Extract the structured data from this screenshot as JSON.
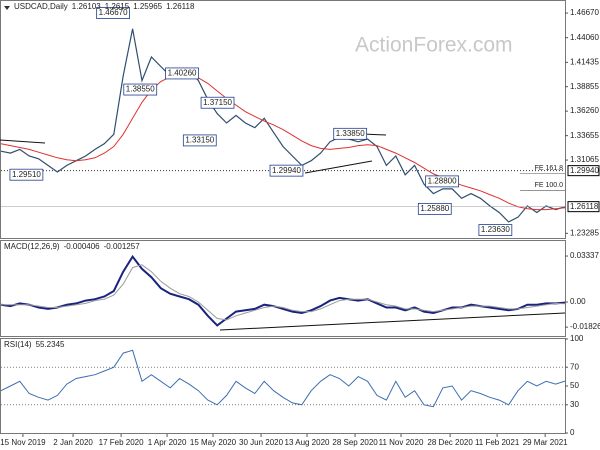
{
  "chart_data": {
    "type": "line",
    "title": "USDCAD,Daily",
    "last_bar": [
      1.26103,
      1.2615,
      1.25965,
      1.26118
    ],
    "watermark": "ActionForex.com",
    "x": [
      0,
      9,
      18,
      27,
      36,
      45,
      54,
      63,
      72,
      81,
      90,
      99,
      108,
      117,
      126,
      135,
      144,
      153,
      162,
      171,
      180,
      189,
      198,
      207,
      216,
      225,
      234,
      243,
      252,
      261,
      270,
      279,
      288,
      297,
      306,
      315,
      324,
      333,
      342,
      351,
      360,
      369,
      378,
      387,
      396,
      405,
      414,
      423,
      432,
      441,
      450,
      459,
      468,
      477,
      486,
      495,
      504,
      513,
      522,
      531,
      540
    ],
    "xlim": [
      0,
      540
    ],
    "xticks": [
      {
        "value": 21,
        "label": "15 Nov 2019"
      },
      {
        "value": 69,
        "label": "2 Jan 2020"
      },
      {
        "value": 115,
        "label": "17 Feb 2020"
      },
      {
        "value": 159,
        "label": "1 Apr 2020"
      },
      {
        "value": 203,
        "label": "15 May 2020"
      },
      {
        "value": 249,
        "label": "30 Jun 2020"
      },
      {
        "value": 293,
        "label": "13 Aug 2020"
      },
      {
        "value": 339,
        "label": "28 Sep 2020"
      },
      {
        "value": 383,
        "label": "11 Nov 2020"
      },
      {
        "value": 430,
        "label": "28 Dec 2020"
      },
      {
        "value": 475,
        "label": "11 Feb 2021"
      },
      {
        "value": 521,
        "label": "29 Mar 2021"
      }
    ],
    "ylim": [
      1.2279,
      1.4795
    ],
    "yticks": [
      {
        "value": 1.4667,
        "label": "1.46670"
      },
      {
        "value": 1.4406,
        "label": "1.44060"
      },
      {
        "value": 1.41435,
        "label": "1.41435"
      },
      {
        "value": 1.38855,
        "label": "1.38855"
      },
      {
        "value": 1.3626,
        "label": "1.36260"
      },
      {
        "value": 1.33655,
        "label": "1.33655"
      },
      {
        "value": 1.31065,
        "label": "1.31065"
      },
      {
        "value": 1.23285,
        "label": "1.23285"
      }
    ],
    "level": {
      "value": 1.2994,
      "label": "1.29940"
    },
    "fib_levels": [
      {
        "value": 1.2965,
        "label": "FE 161.8"
      },
      {
        "value": 1.2785,
        "label": "FE 100.0"
      }
    ],
    "series": [
      {
        "color": "#2f4f6f",
        "values": [
          1.32,
          1.318,
          1.322,
          1.315,
          1.312,
          1.305,
          1.298,
          1.305,
          1.31,
          1.315,
          1.322,
          1.328,
          1.338,
          1.4,
          1.45,
          1.395,
          1.42,
          1.41,
          1.4,
          1.408,
          1.405,
          1.395,
          1.375,
          1.36,
          1.35,
          1.358,
          1.35,
          1.345,
          1.355,
          1.34,
          1.325,
          1.315,
          1.305,
          1.31,
          1.318,
          1.33,
          1.335,
          1.333,
          1.33,
          1.333,
          1.325,
          1.305,
          1.315,
          1.295,
          1.305,
          1.285,
          1.275,
          1.28,
          1.28,
          1.27,
          1.275,
          1.27,
          1.262,
          1.255,
          1.245,
          1.25,
          1.262,
          1.255,
          1.262,
          1.258,
          1.26118
        ]
      },
      {
        "color": "#e03030",
        "values": [
          1.328,
          1.326,
          1.324,
          1.322,
          1.319,
          1.316,
          1.313,
          1.311,
          1.31,
          1.311,
          1.313,
          1.318,
          1.325,
          1.338,
          1.355,
          1.372,
          1.385,
          1.394,
          1.399,
          1.401,
          1.401,
          1.398,
          1.392,
          1.384,
          1.376,
          1.369,
          1.362,
          1.357,
          1.352,
          1.348,
          1.343,
          1.337,
          1.331,
          1.326,
          1.323,
          1.322,
          1.323,
          1.324,
          1.326,
          1.327,
          1.326,
          1.322,
          1.318,
          1.313,
          1.308,
          1.302,
          1.296,
          1.292,
          1.288,
          1.284,
          1.281,
          1.278,
          1.274,
          1.27,
          1.265,
          1.261,
          1.259,
          1.258,
          1.258,
          1.259,
          1.26
        ]
      }
    ],
    "annotations": [
      {
        "x": 125,
        "y": 1.4667,
        "label": "1.46670"
      },
      {
        "x": 151,
        "y": 1.3855,
        "label": "1.38550"
      },
      {
        "x": 191,
        "y": 1.4026,
        "label": "1.40260"
      },
      {
        "x": 225,
        "y": 1.3715,
        "label": "1.37150"
      },
      {
        "x": 208,
        "y": 1.3315,
        "label": "1.33150"
      },
      {
        "x": 42,
        "y": 1.2951,
        "label": "1.29510"
      },
      {
        "x": 291,
        "y": 1.2994,
        "label": "1.29940"
      },
      {
        "x": 352,
        "y": 1.3385,
        "label": "1.33850"
      },
      {
        "x": 440,
        "y": 1.288,
        "label": "1.28800"
      },
      {
        "x": 433,
        "y": 1.2588,
        "label": "1.25880"
      },
      {
        "x": 491,
        "y": 1.2363,
        "label": "1.23630"
      }
    ],
    "panels": [
      {
        "title": "MACD(12,26,9)",
        "ylim": [
          -0.0247,
          0.0443
        ],
        "yticks": [
          0.03337,
          {
            "value": 0,
            "label": "0.00"
          },
          -0.018262
        ],
        "series": [
          {
            "color": "#1a237e",
            "values": [
              -0.002,
              -0.003,
              -0.001,
              -0.002,
              -0.004,
              -0.005,
              -0.004,
              -0.002,
              -0.001,
              0.001,
              0.002,
              0.004,
              0.008,
              0.022,
              0.033,
              0.024,
              0.018,
              0.01,
              0.006,
              0.004,
              0.002,
              -0.002,
              -0.01,
              -0.017,
              -0.012,
              -0.007,
              -0.006,
              -0.005,
              -0.002,
              -0.003,
              -0.005,
              -0.007,
              -0.008,
              -0.006,
              -0.003,
              0.001,
              0.003,
              0.002,
              0.001,
              0.002,
              -0.001,
              -0.004,
              -0.004,
              -0.006,
              -0.004,
              -0.007,
              -0.008,
              -0.006,
              -0.004,
              -0.004,
              -0.002,
              -0.003,
              -0.004,
              -0.005,
              -0.006,
              -0.005,
              -0.002,
              -0.002,
              -0.001,
              -0.001,
              -0.000406
            ]
          },
          {
            "color": "#9a9a9a",
            "values": [
              -0.002,
              -0.002,
              -0.002,
              -0.002,
              -0.003,
              -0.004,
              -0.004,
              -0.003,
              -0.002,
              -0.001,
              0.001,
              0.002,
              0.005,
              0.013,
              0.025,
              0.027,
              0.022,
              0.015,
              0.01,
              0.006,
              0.004,
              0.0,
              -0.006,
              -0.012,
              -0.013,
              -0.01,
              -0.008,
              -0.006,
              -0.004,
              -0.003,
              -0.004,
              -0.006,
              -0.007,
              -0.007,
              -0.005,
              -0.002,
              0.001,
              0.002,
              0.002,
              0.002,
              0.0,
              -0.002,
              -0.003,
              -0.005,
              -0.005,
              -0.006,
              -0.007,
              -0.006,
              -0.005,
              -0.004,
              -0.003,
              -0.003,
              -0.003,
              -0.004,
              -0.005,
              -0.005,
              -0.004,
              -0.003,
              -0.002,
              -0.001,
              -0.001257
            ]
          }
        ]
      },
      {
        "title": "RSI(14)",
        "ylim": [
          0,
          100
        ],
        "yticks": [
          100,
          70,
          50,
          30,
          0
        ],
        "ref_lines": [
          70,
          30
        ],
        "series": [
          {
            "color": "#3d6fb0",
            "values": [
              45,
              50,
              55,
              42,
              38,
              35,
              40,
              52,
              58,
              60,
              62,
              66,
              70,
              85,
              88,
              55,
              62,
              55,
              48,
              58,
              52,
              45,
              35,
              30,
              40,
              55,
              48,
              42,
              55,
              45,
              38,
              32,
              30,
              45,
              55,
              62,
              58,
              50,
              60,
              55,
              40,
              35,
              55,
              38,
              45,
              30,
              28,
              48,
              50,
              35,
              45,
              42,
              38,
              35,
              30,
              45,
              55,
              50,
              55,
              52,
              55.2345
            ]
          }
        ]
      }
    ]
  }
}
